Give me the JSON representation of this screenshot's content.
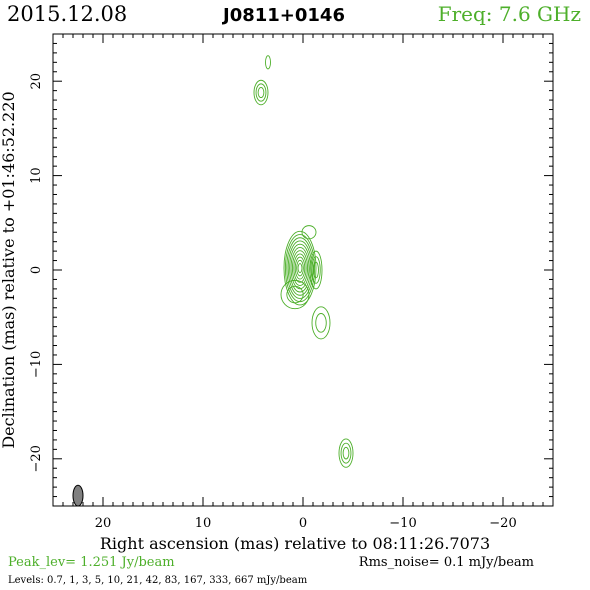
{
  "header": {
    "date": "2015.12.08",
    "source": "J0811+0146",
    "freq": "Freq: 7.6 GHz"
  },
  "footer": {
    "peak": "Peak_lev=  1.251 Jy/beam",
    "rms": "Rms_noise=  0.1 mJy/beam",
    "levels": "Levels: 0.7,   1,   3,   5,   10,   21,   42,   83,  167,  333,  667  mJy/beam"
  },
  "colors": {
    "contour": "#4daf2a",
    "axis": "#000000",
    "beam": "#808080",
    "background": "#ffffff"
  },
  "chart_data": {
    "type": "contour",
    "xlabel": "Right ascension (mas) relative to 08:11:26.7073",
    "ylabel": "Declination (mas) relative to +01:46:52.220",
    "xlim": [
      25,
      -25
    ],
    "ylim": [
      -25,
      25
    ],
    "x_ticks": [
      20,
      10,
      0,
      -10,
      -20
    ],
    "y_ticks": [
      20,
      10,
      0,
      -10,
      -20
    ],
    "x_tick_labels": [
      "20",
      "10",
      "0",
      "−10",
      "−20"
    ],
    "y_tick_labels": [
      "20",
      "10",
      "0",
      "−10",
      "−20"
    ],
    "levels_mJy_per_beam": [
      0.7,
      1,
      3,
      5,
      10,
      21,
      42,
      83,
      167,
      333,
      667
    ],
    "peak_Jy_per_beam": 1.251,
    "rms_noise_mJy_per_beam": 0.1,
    "components": [
      {
        "ra": 0.3,
        "dec": 0.2,
        "a": 1.6,
        "b": 3.9,
        "nlevels": 11
      },
      {
        "ra": -1.3,
        "dec": 0.0,
        "a": 0.6,
        "b": 2.0,
        "nlevels": 3
      },
      {
        "ra": 0.8,
        "dec": -2.6,
        "a": 1.4,
        "b": 1.5,
        "nlevels": 2
      },
      {
        "ra": -1.8,
        "dec": -5.6,
        "a": 0.9,
        "b": 1.7,
        "nlevels": 2
      },
      {
        "ra": -0.6,
        "dec": 4.0,
        "a": 0.7,
        "b": 0.7,
        "nlevels": 1
      },
      {
        "ra": 4.2,
        "dec": 18.8,
        "a": 0.7,
        "b": 1.3,
        "nlevels": 3
      },
      {
        "ra": 3.5,
        "dec": 22.0,
        "a": 0.25,
        "b": 0.7,
        "nlevels": 1
      },
      {
        "ra": -4.3,
        "dec": -19.4,
        "a": 0.7,
        "b": 1.5,
        "nlevels": 3
      }
    ],
    "beam": {
      "ra": 22.5,
      "dec": -23.9,
      "a": 0.5,
      "b": 1.1
    }
  }
}
